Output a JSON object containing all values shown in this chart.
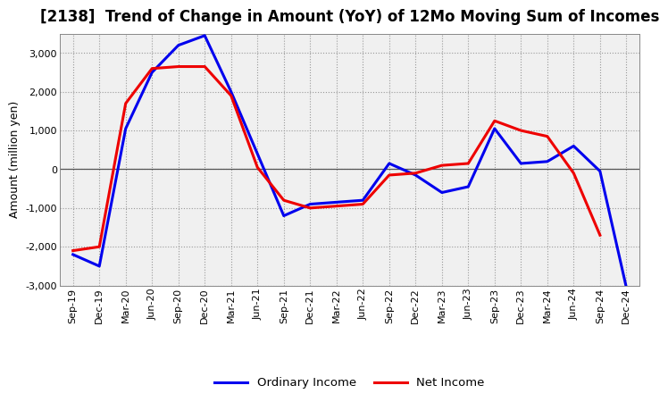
{
  "title": "[2138]  Trend of Change in Amount (YoY) of 12Mo Moving Sum of Incomes",
  "ylabel": "Amount (million yen)",
  "x_labels": [
    "Sep-19",
    "Dec-19",
    "Mar-20",
    "Jun-20",
    "Sep-20",
    "Dec-20",
    "Mar-21",
    "Jun-21",
    "Sep-21",
    "Dec-21",
    "Mar-22",
    "Jun-22",
    "Sep-22",
    "Dec-22",
    "Mar-23",
    "Jun-23",
    "Sep-23",
    "Dec-23",
    "Mar-24",
    "Jun-24",
    "Sep-24",
    "Dec-24"
  ],
  "ordinary_income": [
    -2200,
    -2500,
    1050,
    2500,
    3200,
    3450,
    2000,
    400,
    -1200,
    -900,
    -850,
    -800,
    150,
    -150,
    -600,
    -450,
    1050,
    150,
    200,
    600,
    -50,
    -3050
  ],
  "net_income": [
    -2100,
    -2000,
    1700,
    2600,
    2650,
    2650,
    1900,
    50,
    -800,
    -1000,
    -950,
    -900,
    -150,
    -100,
    100,
    150,
    1250,
    1000,
    850,
    -100,
    -1700,
    null
  ],
  "ordinary_color": "#0000ee",
  "net_color": "#ee0000",
  "background_color": "#ffffff",
  "plot_bg_color": "#f0f0f0",
  "grid_color": "#999999",
  "ylim": [
    -3000,
    3500
  ],
  "yticks": [
    -3000,
    -2000,
    -1000,
    0,
    1000,
    2000,
    3000
  ],
  "legend_labels": [
    "Ordinary Income",
    "Net Income"
  ],
  "line_width": 2.2,
  "title_fontsize": 12,
  "tick_fontsize": 8,
  "ylabel_fontsize": 9
}
